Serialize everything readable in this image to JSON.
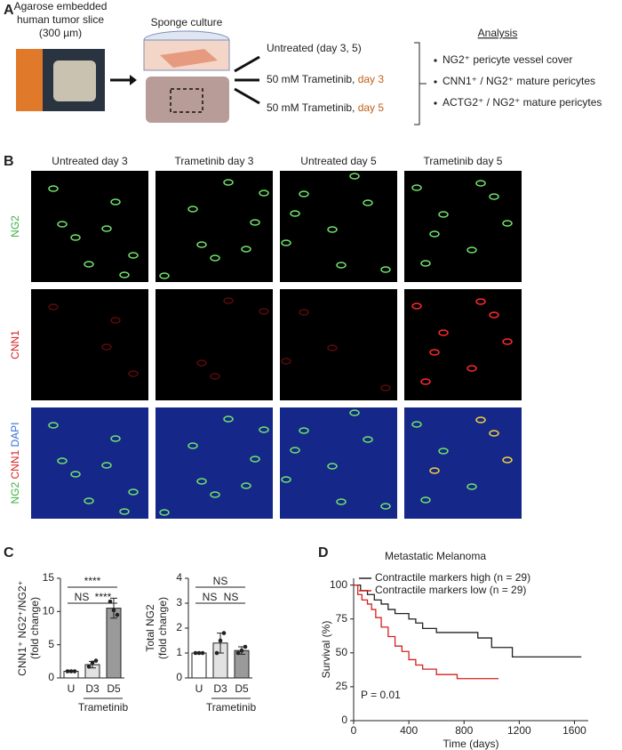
{
  "panel_a": {
    "letter": "A",
    "slice_lines": [
      "Agarose embedded",
      "human tumor slice",
      "(300 µm)"
    ],
    "culture": "Sponge culture",
    "conditions": [
      [
        "Untreated  (day 3, 5)"
      ],
      [
        "50 mM Trametinib, ",
        "day 3"
      ],
      [
        "50 mM Trametinib, ",
        "day 5"
      ]
    ],
    "analysis_title": "Analysis",
    "analysis_items": [
      "NG2⁺ pericyte vessel cover",
      "CNN1⁺ / NG2⁺ mature pericytes",
      "ACTG2⁺ / NG2⁺ mature pericytes"
    ]
  },
  "panel_b": {
    "letter": "B",
    "columns": [
      "Untreated day 3",
      "Trametinib day 3",
      "Untreated day 5",
      "Trametinib day 5"
    ],
    "rows": [
      [
        "NG2"
      ],
      [
        "CNN1"
      ],
      [
        "NG2",
        "CNN1",
        "DAPI"
      ]
    ]
  },
  "panel_c": {
    "letter": "C"
  },
  "panel_d": {
    "letter": "D"
  },
  "chart_data": [
    {
      "type": "bar",
      "ylabel": [
        "CNN1⁺ NG2⁺/NG2⁺",
        "(fold change)"
      ],
      "categories": [
        "U",
        "D3",
        "D5"
      ],
      "values": [
        1,
        2,
        10.5
      ],
      "errors": [
        0,
        0.5,
        1.5
      ],
      "points": [
        [
          1,
          1,
          1
        ],
        [
          1.7,
          2.3,
          2.6
        ],
        [
          11.5,
          10.2,
          9.5
        ]
      ],
      "colors": [
        "#ffffff",
        "#e2e2e2",
        "#9a9a9a"
      ],
      "ylim": [
        0,
        15
      ],
      "yticks": [
        0,
        5,
        10,
        15
      ],
      "group_label": "Trametinib",
      "comparisons": [
        {
          "label": "NS",
          "between": [
            "U",
            "D3"
          ]
        },
        {
          "label": "****",
          "between": [
            "D3",
            "D5"
          ]
        },
        {
          "label": "****",
          "between": [
            "U",
            "D5"
          ]
        }
      ]
    },
    {
      "type": "bar",
      "ylabel": [
        "Total NG2",
        "(fold change)"
      ],
      "categories": [
        "U",
        "D3",
        "D5"
      ],
      "values": [
        1,
        1.4,
        1.1
      ],
      "errors": [
        0,
        0.4,
        0.15
      ],
      "points": [
        [
          1,
          1,
          1
        ],
        [
          1.0,
          1.5,
          1.8
        ],
        [
          1.0,
          1.1,
          1.25
        ]
      ],
      "colors": [
        "#ffffff",
        "#e2e2e2",
        "#9a9a9a"
      ],
      "ylim": [
        0,
        4
      ],
      "yticks": [
        0,
        1,
        2,
        3,
        4
      ],
      "group_label": "Trametinib",
      "comparisons": [
        {
          "label": "NS",
          "between": [
            "U",
            "D3"
          ]
        },
        {
          "label": "NS",
          "between": [
            "D3",
            "D5"
          ]
        },
        {
          "label": "NS",
          "between": [
            "U",
            "D5"
          ]
        }
      ]
    },
    {
      "type": "line",
      "step": true,
      "title": "Metastatic Melanoma",
      "xlabel": "Time (days)",
      "ylabel": "Survival (%)",
      "xlim": [
        0,
        1700
      ],
      "xticks": [
        0,
        400,
        800,
        1200,
        1600
      ],
      "ylim": [
        0,
        105
      ],
      "yticks": [
        0,
        25,
        50,
        75,
        100
      ],
      "annotation": "P = 0.01",
      "series": [
        {
          "name": "Contractile markers high (n = 29)",
          "color": "#222222",
          "x": [
            0,
            50,
            100,
            150,
            200,
            250,
            300,
            400,
            450,
            500,
            550,
            600,
            900,
            1000,
            1150,
            1650
          ],
          "values": [
            100,
            96,
            93,
            89,
            86,
            82,
            79,
            75,
            72,
            68,
            68,
            65,
            61,
            54,
            47,
            47
          ]
        },
        {
          "name": "Contractile markers low (n = 29)",
          "color": "#d62020",
          "x": [
            0,
            30,
            60,
            100,
            130,
            160,
            200,
            250,
            300,
            350,
            400,
            450,
            500,
            600,
            750,
            1050
          ],
          "values": [
            100,
            93,
            89,
            86,
            82,
            76,
            69,
            62,
            55,
            51,
            45,
            41,
            38,
            34,
            31,
            31
          ]
        }
      ]
    }
  ]
}
